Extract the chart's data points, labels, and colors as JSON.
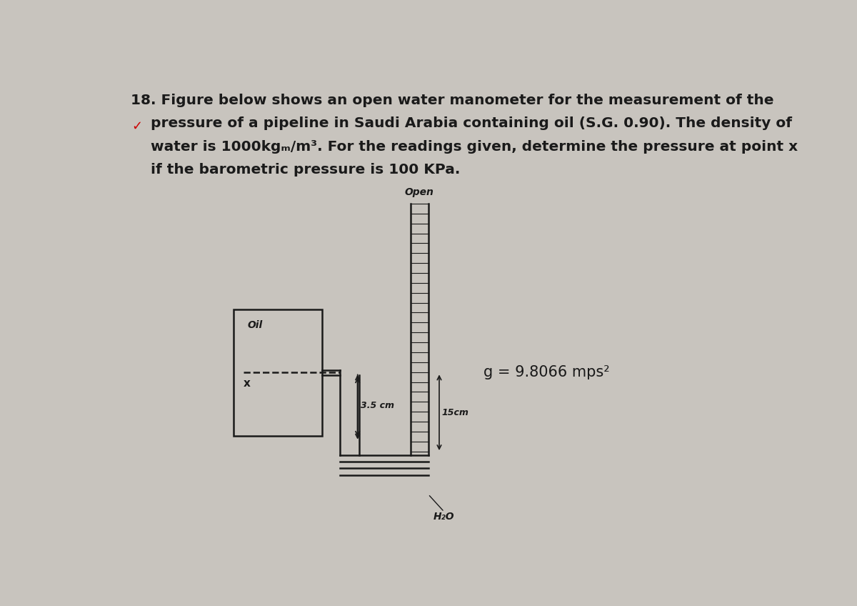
{
  "background_color": "#c8c4be",
  "title_line1": "18. Figure below shows an open water manometer for the measurement of the",
  "title_line2": "    pressure of a pipeline in Saudi Arabia containing oil (S.G. 0.90). The density of",
  "title_line3": "    water is 1000kgₘ/m³. For the readings given, determine the pressure at point x",
  "title_line4": "    if the barometric pressure is 100 KPa.",
  "title_fontsize": 14.5,
  "label_open": "Open",
  "label_h2o": "H₂O",
  "label_oil": "Oil",
  "label_x": "x",
  "label_g": "g = 9.8066 mps²",
  "label_35cm": "3.5 cm",
  "label_15cm": "15cm",
  "text_color": "#1a1a1a",
  "line_color": "#1a1a1a",
  "red_mark_color": "#cc0000"
}
